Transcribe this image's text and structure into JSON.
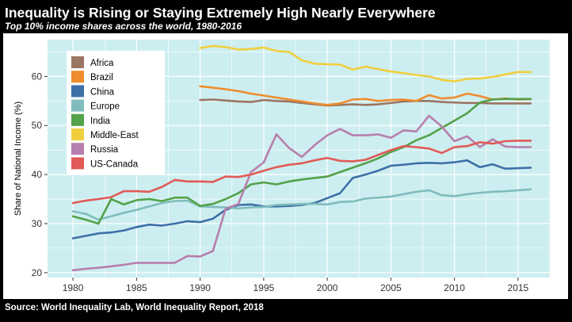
{
  "header": {
    "title": "Inequality is Rising or Staying Extremely High Nearly Everywhere",
    "subtitle": "Top 10% income shares across the world, 1980-2016"
  },
  "footer": {
    "source": "Source: World Inequality Lab, World Inequality Report, 2018"
  },
  "chart_data": {
    "type": "line",
    "title": "Inequality is Rising or Staying Extremely High Nearly Everywhere",
    "subtitle": "Top 10% income shares across the world, 1980-2016",
    "xlabel": "",
    "ylabel": "Share of National Income (%)",
    "xlim": [
      1978,
      2017.5
    ],
    "ylim": [
      19,
      67.5
    ],
    "x_ticks": [
      1980,
      1985,
      1990,
      1995,
      2000,
      2005,
      2010,
      2015
    ],
    "y_ticks": [
      20,
      30,
      40,
      50,
      60
    ],
    "grid": true,
    "legend_position": "top-left",
    "background_color": "#cdeef0",
    "series": [
      {
        "name": "Africa",
        "color": "#9b7563",
        "points": [
          [
            1990,
            55.2
          ],
          [
            1991,
            55.3
          ],
          [
            1992,
            55.1
          ],
          [
            1993,
            54.9
          ],
          [
            1994,
            54.8
          ],
          [
            1995,
            55.2
          ],
          [
            1996,
            55.0
          ],
          [
            1997,
            54.9
          ],
          [
            1998,
            54.6
          ],
          [
            1999,
            54.3
          ],
          [
            2000,
            54.1
          ],
          [
            2001,
            54.2
          ],
          [
            2002,
            54.3
          ],
          [
            2003,
            54.2
          ],
          [
            2004,
            54.3
          ],
          [
            2005,
            54.6
          ],
          [
            2006,
            54.9
          ],
          [
            2007,
            55.0
          ],
          [
            2008,
            55.0
          ],
          [
            2009,
            54.8
          ],
          [
            2010,
            54.7
          ],
          [
            2011,
            54.6
          ],
          [
            2012,
            54.6
          ],
          [
            2013,
            54.5
          ],
          [
            2014,
            54.5
          ],
          [
            2015,
            54.5
          ],
          [
            2016,
            54.5
          ]
        ]
      },
      {
        "name": "Brazil",
        "color": "#ef8c2e",
        "points": [
          [
            1990,
            58.0
          ],
          [
            1991,
            57.7
          ],
          [
            1992,
            57.4
          ],
          [
            1993,
            57.0
          ],
          [
            1994,
            56.5
          ],
          [
            1995,
            56.1
          ],
          [
            1996,
            55.7
          ],
          [
            1997,
            55.3
          ],
          [
            1998,
            54.9
          ],
          [
            1999,
            54.5
          ],
          [
            2000,
            54.2
          ],
          [
            2001,
            54.5
          ],
          [
            2002,
            55.3
          ],
          [
            2003,
            55.4
          ],
          [
            2004,
            55.0
          ],
          [
            2005,
            55.2
          ],
          [
            2006,
            55.3
          ],
          [
            2007,
            55.0
          ],
          [
            2008,
            56.2
          ],
          [
            2009,
            55.5
          ],
          [
            2010,
            55.7
          ],
          [
            2011,
            56.5
          ],
          [
            2012,
            56.0
          ],
          [
            2013,
            55.3
          ],
          [
            2014,
            55.5
          ],
          [
            2015,
            55.3
          ],
          [
            2016,
            55.4
          ]
        ]
      },
      {
        "name": "China",
        "color": "#3e70a7",
        "points": [
          [
            1980,
            27.0
          ],
          [
            1981,
            27.5
          ],
          [
            1982,
            28.0
          ],
          [
            1983,
            28.2
          ],
          [
            1984,
            28.6
          ],
          [
            1985,
            29.3
          ],
          [
            1986,
            29.8
          ],
          [
            1987,
            29.6
          ],
          [
            1988,
            30.0
          ],
          [
            1989,
            30.5
          ],
          [
            1990,
            30.3
          ],
          [
            1991,
            31.0
          ],
          [
            1992,
            32.8
          ],
          [
            1993,
            33.8
          ],
          [
            1994,
            33.9
          ],
          [
            1995,
            33.5
          ],
          [
            1996,
            33.5
          ],
          [
            1997,
            33.6
          ],
          [
            1998,
            33.8
          ],
          [
            1999,
            34.2
          ],
          [
            2000,
            35.2
          ],
          [
            2001,
            36.2
          ],
          [
            2002,
            39.3
          ],
          [
            2003,
            40.0
          ],
          [
            2004,
            40.8
          ],
          [
            2005,
            41.8
          ],
          [
            2006,
            42.0
          ],
          [
            2007,
            42.3
          ],
          [
            2008,
            42.4
          ],
          [
            2009,
            42.3
          ],
          [
            2010,
            42.5
          ],
          [
            2011,
            42.9
          ],
          [
            2012,
            41.5
          ],
          [
            2013,
            42.1
          ],
          [
            2014,
            41.2
          ],
          [
            2015,
            41.3
          ],
          [
            2016,
            41.4
          ]
        ]
      },
      {
        "name": "Europe",
        "color": "#80bcbd",
        "points": [
          [
            1980,
            32.5
          ],
          [
            1981,
            32.0
          ],
          [
            1982,
            30.8
          ],
          [
            1983,
            31.5
          ],
          [
            1984,
            32.2
          ],
          [
            1985,
            32.8
          ],
          [
            1986,
            33.5
          ],
          [
            1987,
            34.2
          ],
          [
            1988,
            34.6
          ],
          [
            1989,
            34.7
          ],
          [
            1990,
            33.5
          ],
          [
            1991,
            33.4
          ],
          [
            1992,
            33.3
          ],
          [
            1993,
            33.1
          ],
          [
            1994,
            33.3
          ],
          [
            1995,
            33.4
          ],
          [
            1996,
            33.8
          ],
          [
            1997,
            33.9
          ],
          [
            1998,
            34.0
          ],
          [
            1999,
            34.0
          ],
          [
            2000,
            33.9
          ],
          [
            2001,
            34.4
          ],
          [
            2002,
            34.5
          ],
          [
            2003,
            35.1
          ],
          [
            2004,
            35.3
          ],
          [
            2005,
            35.5
          ],
          [
            2006,
            36.0
          ],
          [
            2007,
            36.5
          ],
          [
            2008,
            36.8
          ],
          [
            2009,
            35.8
          ],
          [
            2010,
            35.6
          ],
          [
            2011,
            36.0
          ],
          [
            2012,
            36.3
          ],
          [
            2013,
            36.5
          ],
          [
            2014,
            36.6
          ],
          [
            2015,
            36.8
          ],
          [
            2016,
            37.0
          ]
        ]
      },
      {
        "name": "India",
        "color": "#53a149",
        "points": [
          [
            1980,
            31.5
          ],
          [
            1981,
            30.8
          ],
          [
            1982,
            30.0
          ],
          [
            1983,
            35.0
          ],
          [
            1984,
            33.9
          ],
          [
            1985,
            34.8
          ],
          [
            1986,
            35.0
          ],
          [
            1987,
            34.6
          ],
          [
            1988,
            35.3
          ],
          [
            1989,
            35.3
          ],
          [
            1990,
            33.6
          ],
          [
            1991,
            34.0
          ],
          [
            1992,
            35.0
          ],
          [
            1993,
            36.2
          ],
          [
            1994,
            38.0
          ],
          [
            1995,
            38.4
          ],
          [
            1996,
            38.0
          ],
          [
            1997,
            38.6
          ],
          [
            1998,
            39.0
          ],
          [
            1999,
            39.3
          ],
          [
            2000,
            39.6
          ],
          [
            2001,
            40.5
          ],
          [
            2002,
            41.4
          ],
          [
            2003,
            42.3
          ],
          [
            2004,
            43.3
          ],
          [
            2005,
            44.6
          ],
          [
            2006,
            45.6
          ],
          [
            2007,
            47.0
          ],
          [
            2008,
            48.0
          ],
          [
            2009,
            49.5
          ],
          [
            2010,
            51.0
          ],
          [
            2011,
            52.5
          ],
          [
            2012,
            54.7
          ],
          [
            2013,
            55.3
          ],
          [
            2014,
            55.4
          ],
          [
            2015,
            55.4
          ],
          [
            2016,
            55.4
          ]
        ]
      },
      {
        "name": "Middle-East",
        "color": "#f0cf3e",
        "points": [
          [
            1990,
            65.8
          ],
          [
            1991,
            66.2
          ],
          [
            1992,
            66.0
          ],
          [
            1993,
            65.5
          ],
          [
            1994,
            65.6
          ],
          [
            1995,
            65.9
          ],
          [
            1996,
            65.2
          ],
          [
            1997,
            65.0
          ],
          [
            1998,
            63.3
          ],
          [
            1999,
            62.6
          ],
          [
            2000,
            62.5
          ],
          [
            2001,
            62.4
          ],
          [
            2002,
            61.4
          ],
          [
            2003,
            62.0
          ],
          [
            2004,
            61.5
          ],
          [
            2005,
            61.0
          ],
          [
            2006,
            60.7
          ],
          [
            2007,
            60.3
          ],
          [
            2008,
            60.0
          ],
          [
            2009,
            59.3
          ],
          [
            2010,
            59.0
          ],
          [
            2011,
            59.5
          ],
          [
            2012,
            59.6
          ],
          [
            2013,
            59.9
          ],
          [
            2014,
            60.4
          ],
          [
            2015,
            60.9
          ],
          [
            2016,
            60.9
          ]
        ]
      },
      {
        "name": "Russia",
        "color": "#b77fad",
        "points": [
          [
            1980,
            20.5
          ],
          [
            1981,
            20.8
          ],
          [
            1982,
            21.0
          ],
          [
            1983,
            21.3
          ],
          [
            1984,
            21.6
          ],
          [
            1985,
            22.0
          ],
          [
            1986,
            22.0
          ],
          [
            1987,
            22.0
          ],
          [
            1988,
            22.0
          ],
          [
            1989,
            23.4
          ],
          [
            1990,
            23.3
          ],
          [
            1991,
            24.4
          ],
          [
            1992,
            33.0
          ],
          [
            1993,
            34.0
          ],
          [
            1994,
            40.5
          ],
          [
            1995,
            42.5
          ],
          [
            1996,
            48.2
          ],
          [
            1997,
            45.4
          ],
          [
            1998,
            43.6
          ],
          [
            1999,
            46.0
          ],
          [
            2000,
            48.0
          ],
          [
            2001,
            49.3
          ],
          [
            2002,
            48.0
          ],
          [
            2003,
            48.0
          ],
          [
            2004,
            48.2
          ],
          [
            2005,
            47.5
          ],
          [
            2006,
            49.0
          ],
          [
            2007,
            48.8
          ],
          [
            2008,
            52.0
          ],
          [
            2009,
            49.8
          ],
          [
            2010,
            46.8
          ],
          [
            2011,
            47.8
          ],
          [
            2012,
            45.6
          ],
          [
            2013,
            47.2
          ],
          [
            2014,
            45.7
          ],
          [
            2015,
            45.6
          ],
          [
            2016,
            45.6
          ]
        ]
      },
      {
        "name": "US-Canada",
        "color": "#e05a58",
        "points": [
          [
            1980,
            34.2
          ],
          [
            1981,
            34.7
          ],
          [
            1982,
            35.0
          ],
          [
            1983,
            35.4
          ],
          [
            1984,
            36.6
          ],
          [
            1985,
            36.6
          ],
          [
            1986,
            36.5
          ],
          [
            1987,
            37.5
          ],
          [
            1988,
            38.9
          ],
          [
            1989,
            38.6
          ],
          [
            1990,
            38.6
          ],
          [
            1991,
            38.5
          ],
          [
            1992,
            39.6
          ],
          [
            1993,
            39.5
          ],
          [
            1994,
            40.0
          ],
          [
            1995,
            40.8
          ],
          [
            1996,
            41.5
          ],
          [
            1997,
            42.0
          ],
          [
            1998,
            42.3
          ],
          [
            1999,
            42.9
          ],
          [
            2000,
            43.4
          ],
          [
            2001,
            42.8
          ],
          [
            2002,
            42.7
          ],
          [
            2003,
            43.0
          ],
          [
            2004,
            44.0
          ],
          [
            2005,
            45.0
          ],
          [
            2006,
            45.8
          ],
          [
            2007,
            45.6
          ],
          [
            2008,
            45.3
          ],
          [
            2009,
            44.4
          ],
          [
            2010,
            45.6
          ],
          [
            2011,
            45.8
          ],
          [
            2012,
            46.6
          ],
          [
            2013,
            46.3
          ],
          [
            2014,
            46.8
          ],
          [
            2015,
            46.9
          ],
          [
            2016,
            46.9
          ]
        ]
      }
    ]
  }
}
